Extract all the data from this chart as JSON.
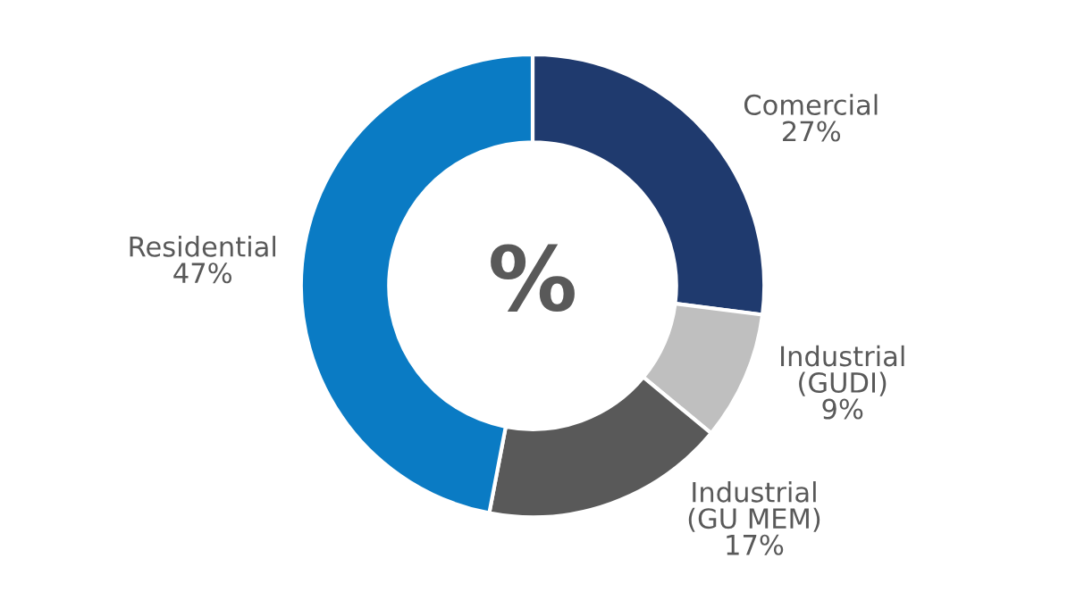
{
  "chart_data": {
    "type": "donut",
    "categories": [
      "Comercial",
      "Industrial\n(GUDI)",
      "Industrial\n(GU MEM)",
      "Residential"
    ],
    "values": [
      27,
      9,
      17,
      47
    ],
    "value_labels": [
      "27%",
      "9%",
      "17%",
      "47%"
    ],
    "colors": [
      "#1f3a6e",
      "#bfbfbf",
      "#595959",
      "#0a7bc4"
    ],
    "annotations": [
      "%"
    ],
    "legend": false
  }
}
